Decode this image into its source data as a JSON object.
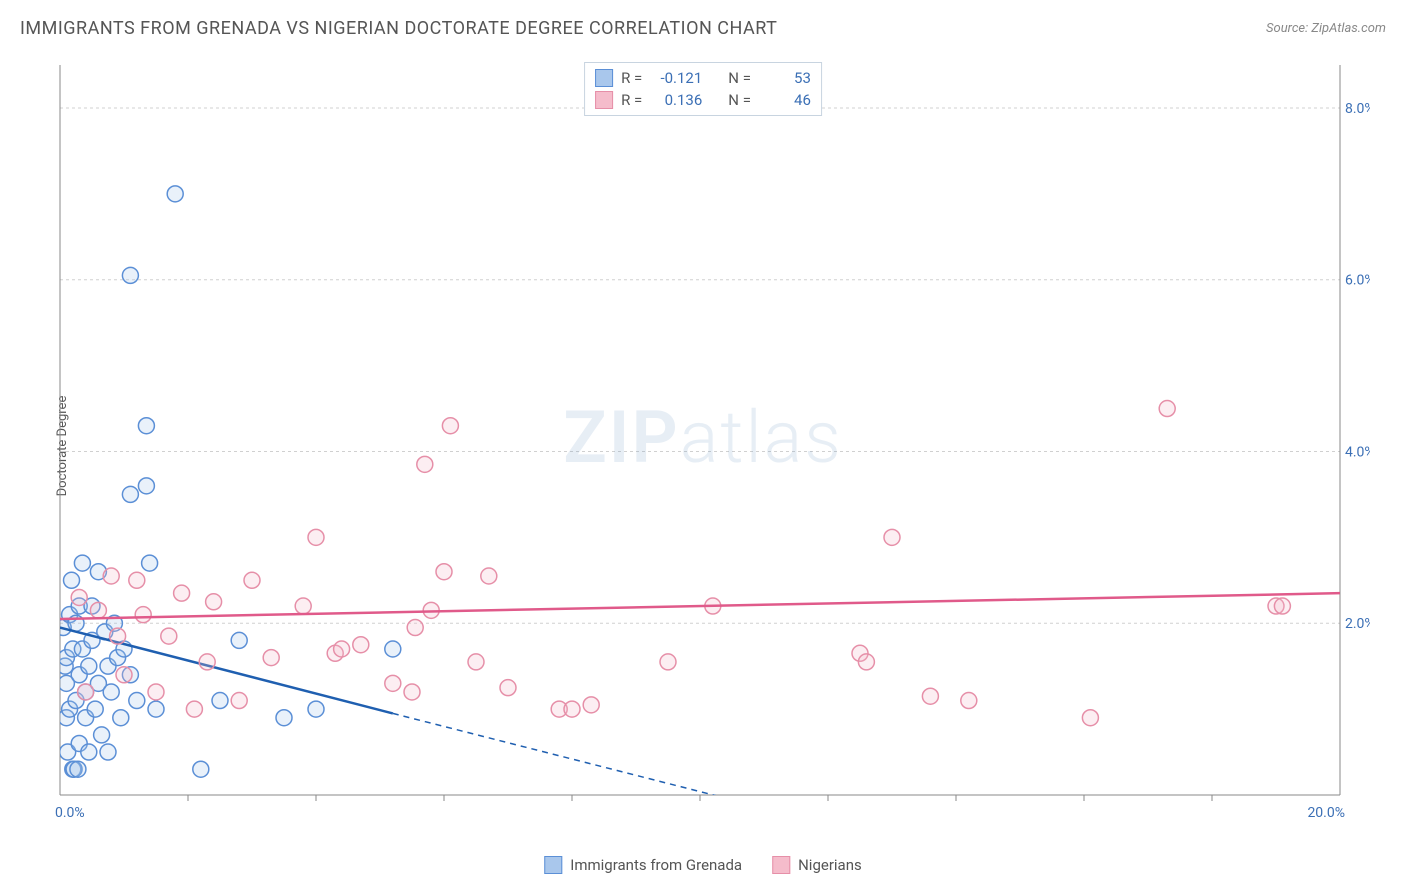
{
  "title": "IMMIGRANTS FROM GRENADA VS NIGERIAN DOCTORATE DEGREE CORRELATION CHART",
  "source": "Source: ZipAtlas.com",
  "y_axis_label": "Doctorate Degree",
  "watermark": {
    "bold": "ZIP",
    "light": "atlas"
  },
  "chart": {
    "type": "scatter",
    "xlim": [
      0,
      20
    ],
    "ylim": [
      0,
      8.5
    ],
    "x_tick_origin_label": "0.0%",
    "x_tick_end_label": "20.0%",
    "y_ticks": [
      2.0,
      4.0,
      6.0,
      8.0
    ],
    "y_tick_labels": [
      "2.0%",
      "4.0%",
      "6.0%",
      "8.0%"
    ],
    "x_minor_ticks": [
      2,
      4,
      6,
      8,
      10,
      12,
      14,
      16,
      18
    ],
    "grid_color": "#d0d0d0",
    "background_color": "#ffffff",
    "axis_color": "#888888",
    "marker_radius": 8,
    "marker_stroke_width": 1.5,
    "marker_fill_opacity": 0.25,
    "trend_line_width": 2.5,
    "trend_dash_width": 1.5
  },
  "series": [
    {
      "key": "grenada",
      "label": "Immigrants from Grenada",
      "color_stroke": "#5b8fd6",
      "color_fill": "#a9c7ec",
      "trend_color": "#1f5fb0",
      "stats": {
        "R": "-0.121",
        "N": "53"
      },
      "trend": {
        "x1": 0,
        "y1": 1.95,
        "x2_solid": 5.2,
        "y2_solid": 0.95,
        "x2_dash": 11.0,
        "y2_dash": -0.15
      },
      "points": [
        [
          0.05,
          1.95
        ],
        [
          0.08,
          1.5
        ],
        [
          0.1,
          1.6
        ],
        [
          0.1,
          1.3
        ],
        [
          0.1,
          0.9
        ],
        [
          0.12,
          0.5
        ],
        [
          0.15,
          2.1
        ],
        [
          0.15,
          1.0
        ],
        [
          0.18,
          2.5
        ],
        [
          0.2,
          0.3
        ],
        [
          0.2,
          1.7
        ],
        [
          0.22,
          0.3
        ],
        [
          0.25,
          2.0
        ],
        [
          0.25,
          1.1
        ],
        [
          0.28,
          0.3
        ],
        [
          0.3,
          2.2
        ],
        [
          0.3,
          1.4
        ],
        [
          0.3,
          0.6
        ],
        [
          0.35,
          2.7
        ],
        [
          0.35,
          1.7
        ],
        [
          0.4,
          1.2
        ],
        [
          0.4,
          0.9
        ],
        [
          0.45,
          1.5
        ],
        [
          0.45,
          0.5
        ],
        [
          0.5,
          2.2
        ],
        [
          0.5,
          1.8
        ],
        [
          0.55,
          1.0
        ],
        [
          0.6,
          2.6
        ],
        [
          0.6,
          1.3
        ],
        [
          0.65,
          0.7
        ],
        [
          0.7,
          1.9
        ],
        [
          0.75,
          1.5
        ],
        [
          0.75,
          0.5
        ],
        [
          0.8,
          1.2
        ],
        [
          0.85,
          2.0
        ],
        [
          0.9,
          1.6
        ],
        [
          0.95,
          0.9
        ],
        [
          1.0,
          1.7
        ],
        [
          1.1,
          3.5
        ],
        [
          1.1,
          1.4
        ],
        [
          1.2,
          1.1
        ],
        [
          1.35,
          4.3
        ],
        [
          1.35,
          3.6
        ],
        [
          1.4,
          2.7
        ],
        [
          1.5,
          1.0
        ],
        [
          1.8,
          7.0
        ],
        [
          1.1,
          6.05
        ],
        [
          2.2,
          0.3
        ],
        [
          2.5,
          1.1
        ],
        [
          2.8,
          1.8
        ],
        [
          3.5,
          0.9
        ],
        [
          4.0,
          1.0
        ],
        [
          5.2,
          1.7
        ]
      ]
    },
    {
      "key": "nigerians",
      "label": "Nigerians",
      "color_stroke": "#e68fa8",
      "color_fill": "#f5bccb",
      "trend_color": "#e05a8a",
      "stats": {
        "R": "0.136",
        "N": "46"
      },
      "trend": {
        "x1": 0,
        "y1": 2.05,
        "x2_solid": 20,
        "y2_solid": 2.35,
        "x2_dash": 20,
        "y2_dash": 2.35
      },
      "points": [
        [
          0.3,
          2.3
        ],
        [
          0.4,
          1.2
        ],
        [
          0.6,
          2.15
        ],
        [
          0.8,
          2.55
        ],
        [
          0.9,
          1.85
        ],
        [
          1.0,
          1.4
        ],
        [
          1.2,
          2.5
        ],
        [
          1.3,
          2.1
        ],
        [
          1.5,
          1.2
        ],
        [
          1.7,
          1.85
        ],
        [
          1.9,
          2.35
        ],
        [
          2.1,
          1.0
        ],
        [
          2.3,
          1.55
        ],
        [
          2.4,
          2.25
        ],
        [
          2.8,
          1.1
        ],
        [
          3.0,
          2.5
        ],
        [
          3.3,
          1.6
        ],
        [
          3.8,
          2.2
        ],
        [
          4.0,
          3.0
        ],
        [
          4.3,
          1.65
        ],
        [
          4.4,
          1.7
        ],
        [
          4.7,
          1.75
        ],
        [
          5.2,
          1.3
        ],
        [
          5.5,
          1.2
        ],
        [
          5.55,
          1.95
        ],
        [
          5.8,
          2.15
        ],
        [
          5.7,
          3.85
        ],
        [
          6.0,
          2.6
        ],
        [
          6.1,
          4.3
        ],
        [
          6.5,
          1.55
        ],
        [
          6.7,
          2.55
        ],
        [
          7.0,
          1.25
        ],
        [
          7.8,
          1.0
        ],
        [
          8.0,
          1.0
        ],
        [
          8.3,
          1.05
        ],
        [
          9.5,
          1.55
        ],
        [
          10.2,
          2.2
        ],
        [
          12.5,
          1.65
        ],
        [
          12.6,
          1.55
        ],
        [
          13.0,
          3.0
        ],
        [
          13.6,
          1.15
        ],
        [
          14.2,
          1.1
        ],
        [
          16.1,
          0.9
        ],
        [
          17.3,
          4.5
        ],
        [
          19.0,
          2.2
        ],
        [
          19.1,
          2.2
        ]
      ]
    }
  ],
  "stats_box": {
    "rows": [
      {
        "series": "grenada",
        "r_label": "R =",
        "n_label": "N ="
      },
      {
        "series": "nigerians",
        "r_label": "R =",
        "n_label": "N ="
      }
    ]
  }
}
